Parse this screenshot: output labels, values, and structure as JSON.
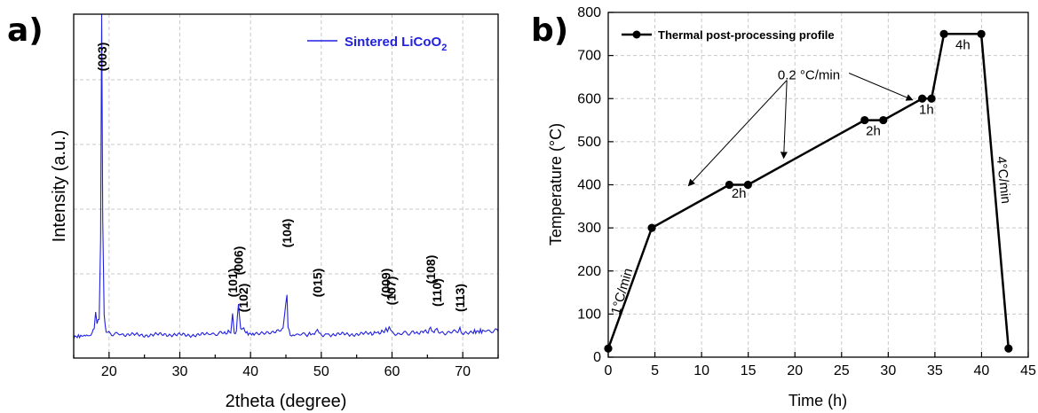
{
  "chart_data": [
    {
      "panel": "a)",
      "type": "line",
      "xlabel": "2theta (degree)",
      "ylabel": "Intensity (a.u.)",
      "xlim": [
        15,
        75
      ],
      "xticks": [
        20,
        30,
        40,
        50,
        60,
        70
      ],
      "grid": true,
      "legend": {
        "position": "top-right",
        "label": "Sintered LiCoO",
        "subscript": "2"
      },
      "series_color": "#2020e0",
      "series": [
        {
          "name": "Sintered LiCoO2",
          "x": [
            15.0,
            16.0,
            17.0,
            17.6,
            17.9,
            18.1,
            18.3,
            18.6,
            18.8,
            18.95,
            19.1,
            19.3,
            19.6,
            20.0,
            22.0,
            25.0,
            28.0,
            31.0,
            34.0,
            36.0,
            37.2,
            37.45,
            37.7,
            38.0,
            38.3,
            38.6,
            38.9,
            39.2,
            39.5,
            40.5,
            43.0,
            44.6,
            45.0,
            45.15,
            45.3,
            45.6,
            46.0,
            48.0,
            49.2,
            49.45,
            49.7,
            51.0,
            54.0,
            57.0,
            58.9,
            59.15,
            59.35,
            59.6,
            59.85,
            60.1,
            61.0,
            63.0,
            65.1,
            65.45,
            65.8,
            66.1,
            66.35,
            66.6,
            67.5,
            69.3,
            69.6,
            69.9,
            71.5,
            73.0,
            75.0
          ],
          "y": [
            0.02,
            0.025,
            0.03,
            0.04,
            0.08,
            0.17,
            0.1,
            0.12,
            0.6,
            2.0,
            0.7,
            0.15,
            0.05,
            0.04,
            0.035,
            0.03,
            0.035,
            0.03,
            0.035,
            0.04,
            0.05,
            0.15,
            0.04,
            0.06,
            0.22,
            0.06,
            0.07,
            0.05,
            0.04,
            0.035,
            0.04,
            0.06,
            0.22,
            0.28,
            0.08,
            0.04,
            0.035,
            0.035,
            0.04,
            0.06,
            0.035,
            0.035,
            0.035,
            0.04,
            0.05,
            0.07,
            0.05,
            0.08,
            0.05,
            0.04,
            0.04,
            0.045,
            0.05,
            0.08,
            0.05,
            0.06,
            0.07,
            0.05,
            0.045,
            0.05,
            0.07,
            0.045,
            0.05,
            0.055,
            0.055
          ]
        }
      ],
      "peak_labels": [
        {
          "text": "(003)",
          "x": 19.0
        },
        {
          "text": "(101)",
          "x": 37.45
        },
        {
          "text": "(006)",
          "x": 38.3
        },
        {
          "text": "(102)",
          "x": 39.0
        },
        {
          "text": "(104)",
          "x": 45.15
        },
        {
          "text": "(015)",
          "x": 49.45
        },
        {
          "text": "(009)",
          "x": 59.15
        },
        {
          "text": "(107)",
          "x": 59.9
        },
        {
          "text": "(108)",
          "x": 65.45
        },
        {
          "text": "(110)",
          "x": 66.35
        },
        {
          "text": "(113)",
          "x": 69.6
        }
      ]
    },
    {
      "panel": "b)",
      "type": "line",
      "xlabel": "Time (h)",
      "ylabel": "Temperature (°C)",
      "xlim": [
        0,
        45
      ],
      "ylim": [
        0,
        800
      ],
      "xticks": [
        0,
        5,
        10,
        15,
        20,
        25,
        30,
        35,
        40,
        45
      ],
      "yticks": [
        0,
        100,
        200,
        300,
        400,
        500,
        600,
        700,
        800
      ],
      "grid": true,
      "legend": {
        "position": "top-left",
        "label": "Thermal post-processing profile"
      },
      "series_color": "#000000",
      "series": [
        {
          "name": "Thermal post-processing profile",
          "x": [
            0,
            4.67,
            12.97,
            14.97,
            27.47,
            29.47,
            33.64,
            34.64,
            35.97,
            39.97,
            42.89
          ],
          "y": [
            20,
            300,
            400,
            400,
            550,
            550,
            600,
            600,
            750,
            750,
            20
          ]
        }
      ],
      "annotations": [
        {
          "text": "1°C/min",
          "x": 1.9,
          "y": 150
        },
        {
          "text": "0.2 °C/min",
          "x": 21.5,
          "y": 645
        },
        {
          "text": "2h",
          "x": 14.0,
          "y": 370
        },
        {
          "text": "2h",
          "x": 28.4,
          "y": 515
        },
        {
          "text": "1h",
          "x": 34.1,
          "y": 565
        },
        {
          "text": "4h",
          "x": 38.0,
          "y": 715
        },
        {
          "text": "4°C/min",
          "x": 41.9,
          "y": 410
        }
      ]
    }
  ]
}
